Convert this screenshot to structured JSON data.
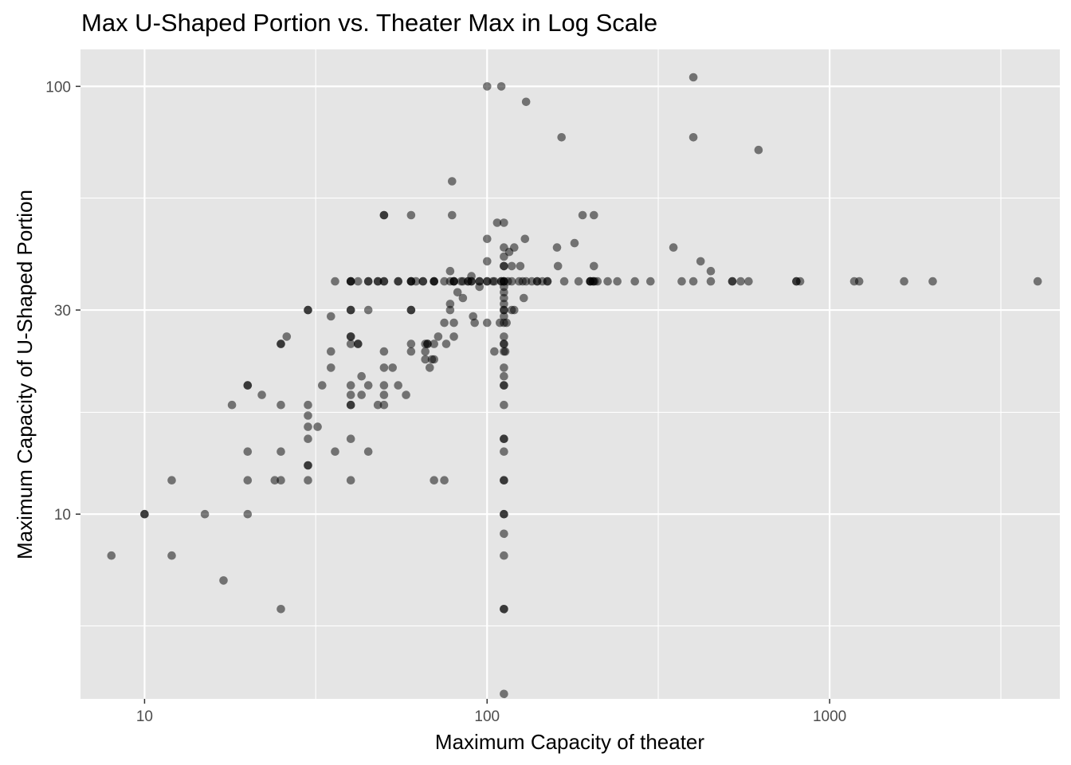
{
  "chart_data": {
    "type": "scatter",
    "title": "Max U-Shaped Portion vs. Theater Max in Log Scale",
    "xlabel": "Maximum Capacity of theater",
    "ylabel": "Maximum Capacity of U-Shaped Portion",
    "x_scale": "log10",
    "y_scale": "log10",
    "xlim": [
      6.5,
      4700
    ],
    "ylim": [
      3.7,
      122
    ],
    "x_ticks": [
      10,
      100,
      1000
    ],
    "x_tick_labels": [
      "10",
      "100",
      "1000"
    ],
    "y_ticks": [
      10,
      30,
      100
    ],
    "y_tick_labels": [
      "10",
      "30",
      "100"
    ],
    "x_minor": [
      31.6,
      316,
      3162
    ],
    "y_minor": [
      5.48,
      17.3,
      54.8
    ],
    "grid": true,
    "background": "#e5e5e5",
    "grid_color": "#ffffff",
    "point_color": "#000000",
    "point_alpha": 0.5,
    "points": [
      [
        8,
        8
      ],
      [
        10,
        10
      ],
      [
        10,
        10
      ],
      [
        12,
        8
      ],
      [
        12,
        12
      ],
      [
        15,
        10
      ],
      [
        17,
        7
      ],
      [
        18,
        18
      ],
      [
        20,
        12
      ],
      [
        20,
        14
      ],
      [
        20,
        10
      ],
      [
        20,
        20
      ],
      [
        20,
        20
      ],
      [
        22,
        19
      ],
      [
        24,
        12
      ],
      [
        25,
        6
      ],
      [
        25,
        12
      ],
      [
        25,
        14
      ],
      [
        25,
        18
      ],
      [
        25,
        25
      ],
      [
        25,
        25
      ],
      [
        26,
        26
      ],
      [
        30,
        12
      ],
      [
        30,
        13
      ],
      [
        30,
        13
      ],
      [
        30,
        15
      ],
      [
        30,
        16
      ],
      [
        30,
        17
      ],
      [
        30,
        18
      ],
      [
        30,
        30
      ],
      [
        30,
        30
      ],
      [
        32,
        16
      ],
      [
        33,
        20
      ],
      [
        35,
        24
      ],
      [
        35,
        22
      ],
      [
        35,
        29
      ],
      [
        36,
        14
      ],
      [
        36,
        35
      ],
      [
        40,
        12
      ],
      [
        40,
        15
      ],
      [
        40,
        18
      ],
      [
        40,
        18
      ],
      [
        40,
        19
      ],
      [
        40,
        20
      ],
      [
        40,
        25
      ],
      [
        40,
        26
      ],
      [
        40,
        26
      ],
      [
        40,
        30
      ],
      [
        40,
        30
      ],
      [
        40,
        35
      ],
      [
        40,
        35
      ],
      [
        40,
        35
      ],
      [
        42,
        35
      ],
      [
        42,
        25
      ],
      [
        42,
        25
      ],
      [
        43,
        21
      ],
      [
        43,
        19
      ],
      [
        45,
        14
      ],
      [
        45,
        20
      ],
      [
        45,
        30
      ],
      [
        45,
        35
      ],
      [
        45,
        35
      ],
      [
        48,
        18
      ],
      [
        48,
        35
      ],
      [
        48,
        35
      ],
      [
        50,
        19
      ],
      [
        50,
        24
      ],
      [
        50,
        35
      ],
      [
        50,
        22
      ],
      [
        50,
        20
      ],
      [
        50,
        18
      ],
      [
        50,
        50
      ],
      [
        50,
        50
      ],
      [
        50,
        35
      ],
      [
        53,
        22
      ],
      [
        55,
        35
      ],
      [
        55,
        20
      ],
      [
        55,
        35
      ],
      [
        58,
        19
      ],
      [
        60,
        24
      ],
      [
        60,
        25
      ],
      [
        60,
        30
      ],
      [
        60,
        30
      ],
      [
        60,
        35
      ],
      [
        60,
        35
      ],
      [
        60,
        35
      ],
      [
        60,
        50
      ],
      [
        62,
        35
      ],
      [
        65,
        35
      ],
      [
        65,
        35
      ],
      [
        66,
        23
      ],
      [
        66,
        24
      ],
      [
        66,
        25
      ],
      [
        67,
        25
      ],
      [
        67,
        25
      ],
      [
        68,
        22
      ],
      [
        69,
        23
      ],
      [
        70,
        23
      ],
      [
        70,
        25
      ],
      [
        70,
        35
      ],
      [
        70,
        35
      ],
      [
        70,
        35
      ],
      [
        70,
        12
      ],
      [
        72,
        26
      ],
      [
        75,
        12
      ],
      [
        75,
        28
      ],
      [
        75,
        35
      ],
      [
        76,
        25
      ],
      [
        78,
        35
      ],
      [
        78,
        37
      ],
      [
        78,
        31
      ],
      [
        78,
        30
      ],
      [
        79,
        50
      ],
      [
        79,
        60
      ],
      [
        80,
        26
      ],
      [
        80,
        28
      ],
      [
        80,
        35
      ],
      [
        80,
        35
      ],
      [
        80,
        35
      ],
      [
        82,
        33
      ],
      [
        84,
        35
      ],
      [
        85,
        35
      ],
      [
        85,
        32
      ],
      [
        88,
        35
      ],
      [
        88,
        35
      ],
      [
        90,
        36
      ],
      [
        90,
        35
      ],
      [
        90,
        35
      ],
      [
        91,
        29
      ],
      [
        92,
        28
      ],
      [
        95,
        34
      ],
      [
        95,
        35
      ],
      [
        95,
        35
      ],
      [
        100,
        28
      ],
      [
        100,
        35
      ],
      [
        100,
        35
      ],
      [
        100,
        39
      ],
      [
        100,
        44
      ],
      [
        100,
        100
      ],
      [
        104,
        35
      ],
      [
        105,
        24
      ],
      [
        105,
        35
      ],
      [
        107,
        48
      ],
      [
        109,
        28
      ],
      [
        110,
        100
      ],
      [
        110,
        35
      ],
      [
        110,
        35
      ],
      [
        112,
        3.8
      ],
      [
        112,
        6
      ],
      [
        112,
        6
      ],
      [
        112,
        8
      ],
      [
        112,
        9
      ],
      [
        112,
        10
      ],
      [
        112,
        10
      ],
      [
        112,
        12
      ],
      [
        112,
        12
      ],
      [
        112,
        14
      ],
      [
        112,
        15
      ],
      [
        112,
        15
      ],
      [
        112,
        18
      ],
      [
        112,
        20
      ],
      [
        112,
        20
      ],
      [
        112,
        21
      ],
      [
        112,
        22
      ],
      [
        112,
        24
      ],
      [
        112,
        25
      ],
      [
        112,
        25
      ],
      [
        112,
        26
      ],
      [
        112,
        28
      ],
      [
        112,
        29
      ],
      [
        112,
        30
      ],
      [
        112,
        30
      ],
      [
        112,
        31
      ],
      [
        112,
        32
      ],
      [
        112,
        33
      ],
      [
        112,
        34
      ],
      [
        112,
        35
      ],
      [
        112,
        35
      ],
      [
        112,
        35
      ],
      [
        112,
        38
      ],
      [
        112,
        38
      ],
      [
        112,
        40
      ],
      [
        112,
        42
      ],
      [
        112,
        48
      ],
      [
        113,
        24
      ],
      [
        114,
        28
      ],
      [
        115,
        35
      ],
      [
        116,
        41
      ],
      [
        118,
        30
      ],
      [
        118,
        35
      ],
      [
        118,
        38
      ],
      [
        120,
        42
      ],
      [
        120,
        30
      ],
      [
        124,
        35
      ],
      [
        125,
        38
      ],
      [
        127,
        35
      ],
      [
        128,
        32
      ],
      [
        129,
        44
      ],
      [
        130,
        92
      ],
      [
        130,
        35
      ],
      [
        135,
        35
      ],
      [
        140,
        35
      ],
      [
        140,
        35
      ],
      [
        145,
        35
      ],
      [
        150,
        35
      ],
      [
        150,
        35
      ],
      [
        160,
        42
      ],
      [
        161,
        38
      ],
      [
        165,
        76
      ],
      [
        168,
        35
      ],
      [
        180,
        43
      ],
      [
        185,
        35
      ],
      [
        190,
        50
      ],
      [
        200,
        35
      ],
      [
        200,
        35
      ],
      [
        200,
        35
      ],
      [
        204,
        35
      ],
      [
        204,
        35
      ],
      [
        205,
        38
      ],
      [
        205,
        50
      ],
      [
        206,
        35
      ],
      [
        210,
        35
      ],
      [
        225,
        35
      ],
      [
        240,
        35
      ],
      [
        270,
        35
      ],
      [
        300,
        35
      ],
      [
        350,
        42
      ],
      [
        370,
        35
      ],
      [
        400,
        35
      ],
      [
        400,
        76
      ],
      [
        400,
        105
      ],
      [
        420,
        39
      ],
      [
        450,
        35
      ],
      [
        450,
        37
      ],
      [
        520,
        35
      ],
      [
        520,
        35
      ],
      [
        550,
        35
      ],
      [
        580,
        35
      ],
      [
        620,
        71
      ],
      [
        800,
        35
      ],
      [
        800,
        35
      ],
      [
        820,
        35
      ],
      [
        1180,
        35
      ],
      [
        1220,
        35
      ],
      [
        1650,
        35
      ],
      [
        2000,
        35
      ],
      [
        4050,
        35
      ]
    ]
  }
}
